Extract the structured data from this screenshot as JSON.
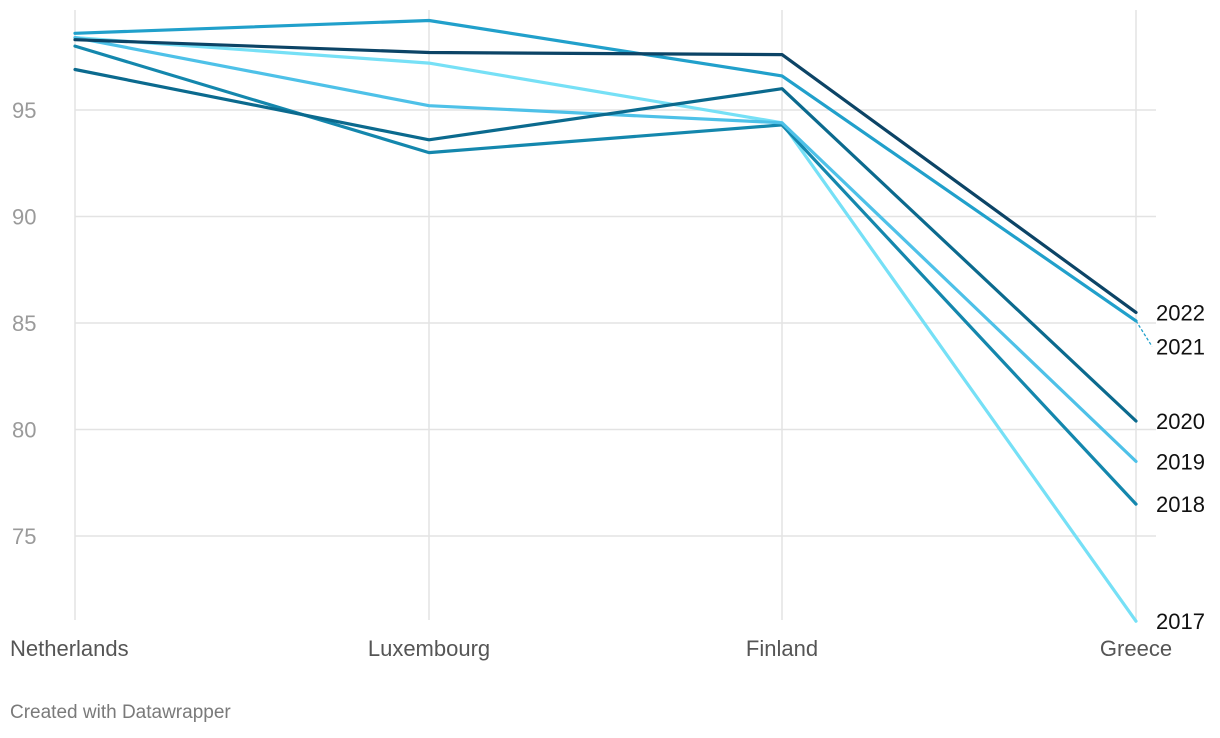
{
  "chart_data": {
    "type": "line",
    "categories": [
      "Netherlands",
      "Luxembourg",
      "Finland",
      "Greece"
    ],
    "ylim": [
      71,
      99.5
    ],
    "yticks": [
      75,
      80,
      85,
      90,
      95
    ],
    "grid": true,
    "series": [
      {
        "name": "2017",
        "values": [
          98.4,
          97.2,
          94.4,
          71.0
        ],
        "color": "#76e0f6"
      },
      {
        "name": "2018",
        "values": [
          98.0,
          93.0,
          94.3,
          76.5
        ],
        "color": "#1487ad"
      },
      {
        "name": "2019",
        "values": [
          98.4,
          95.2,
          94.4,
          78.5
        ],
        "color": "#4ec1e8"
      },
      {
        "name": "2020",
        "values": [
          96.9,
          93.6,
          96.0,
          80.4
        ],
        "color": "#0b6a8e"
      },
      {
        "name": "2021",
        "values": [
          98.6,
          99.2,
          96.6,
          85.1
        ],
        "color": "#21a0cb"
      },
      {
        "name": "2022",
        "values": [
          98.3,
          97.7,
          97.6,
          85.5
        ],
        "color": "#0c4466"
      }
    ]
  },
  "footer": {
    "credit": "Created with Datawrapper"
  }
}
